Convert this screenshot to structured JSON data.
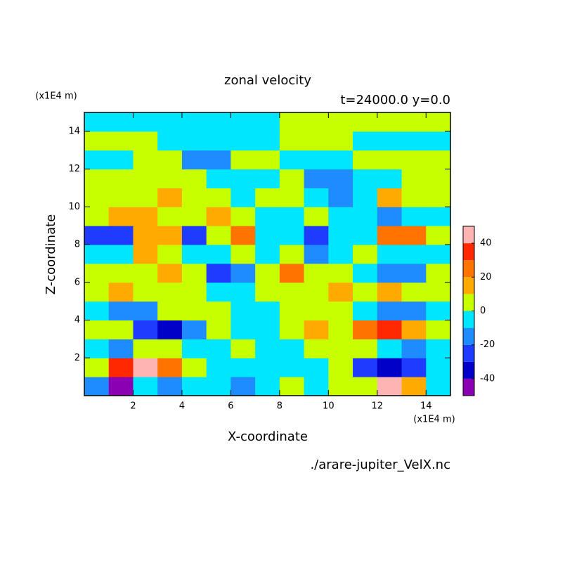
{
  "chart_data": {
    "type": "contour",
    "title": "zonal velocity",
    "subtitle": "t=24000.0 y=0.0",
    "x_label": "X-coordinate",
    "y_label": "Z-coordinate",
    "x_unit": "(x1E4 m)",
    "y_unit": "(x1E4 m)",
    "source": "./arare-jupiter_VelX.nc",
    "xlim": [
      0,
      15
    ],
    "ylim": [
      0,
      15
    ],
    "xticks": [
      2,
      4,
      6,
      8,
      10,
      12,
      14
    ],
    "yticks": [
      2,
      4,
      6,
      8,
      10,
      12,
      14
    ],
    "x": [
      0.5,
      1.5,
      2.5,
      3.5,
      4.5,
      5.5,
      6.5,
      7.5,
      8.5,
      9.5,
      10.5,
      11.5,
      12.5,
      13.5,
      14.5
    ],
    "y": [
      0.5,
      1.5,
      2.5,
      3.5,
      4.5,
      5.5,
      6.5,
      7.5,
      8.5,
      9.5,
      10.5,
      11.5,
      12.5,
      13.5,
      14.5
    ],
    "z": [
      [
        -15,
        -45,
        -5,
        -15,
        -5,
        -5,
        -15,
        -5,
        5,
        -5,
        5,
        5,
        45,
        15,
        -5
      ],
      [
        5,
        35,
        45,
        25,
        5,
        -5,
        -5,
        -5,
        -5,
        -5,
        5,
        -25,
        -35,
        -25,
        -5
      ],
      [
        -5,
        -15,
        5,
        5,
        -5,
        -5,
        5,
        -5,
        -5,
        5,
        5,
        5,
        -5,
        -15,
        -5
      ],
      [
        5,
        5,
        -25,
        -35,
        -15,
        5,
        -5,
        -5,
        5,
        15,
        5,
        25,
        35,
        15,
        5
      ],
      [
        -5,
        -15,
        -15,
        5,
        5,
        5,
        -5,
        -5,
        5,
        5,
        5,
        -5,
        -15,
        -15,
        -5
      ],
      [
        5,
        15,
        5,
        5,
        5,
        -5,
        -5,
        5,
        5,
        5,
        15,
        5,
        15,
        5,
        5
      ],
      [
        5,
        5,
        5,
        15,
        5,
        -25,
        -15,
        5,
        25,
        5,
        5,
        -5,
        -15,
        -15,
        5
      ],
      [
        -5,
        -5,
        15,
        5,
        -5,
        -5,
        5,
        -5,
        5,
        -15,
        -5,
        5,
        -5,
        -5,
        -5
      ],
      [
        -25,
        -25,
        15,
        15,
        -25,
        5,
        25,
        -5,
        -5,
        -25,
        -5,
        -5,
        25,
        25,
        5
      ],
      [
        5,
        15,
        15,
        5,
        5,
        15,
        5,
        -5,
        -5,
        5,
        -5,
        -5,
        -15,
        -5,
        -5
      ],
      [
        5,
        5,
        5,
        12,
        5,
        5,
        -5,
        5,
        5,
        -5,
        -15,
        -5,
        12,
        5,
        5
      ],
      [
        5,
        5,
        5,
        5,
        5,
        -5,
        -5,
        -5,
        5,
        -15,
        -15,
        -5,
        -5,
        5,
        5
      ],
      [
        -5,
        -5,
        5,
        5,
        -15,
        -15,
        5,
        5,
        -5,
        -5,
        -5,
        5,
        5,
        5,
        5
      ],
      [
        5,
        5,
        5,
        -5,
        -5,
        -5,
        -5,
        -5,
        5,
        5,
        5,
        -5,
        -5,
        -5,
        -5
      ],
      [
        -5,
        -5,
        -5,
        -5,
        -5,
        -5,
        -5,
        -5,
        2,
        2,
        2,
        2,
        2,
        2,
        2
      ]
    ],
    "levels": [
      -50,
      -40,
      -30,
      -20,
      -10,
      0,
      10,
      20,
      30,
      40,
      50
    ],
    "colors": [
      "#8c00b4",
      "#0000c8",
      "#1e3cff",
      "#1e8cff",
      "#00e6ff",
      "#c8ff00",
      "#ffaa00",
      "#ff7300",
      "#ff2800",
      "#ffb4b4"
    ],
    "colorbar_ticks": [
      -40,
      -20,
      0,
      20,
      40
    ]
  }
}
